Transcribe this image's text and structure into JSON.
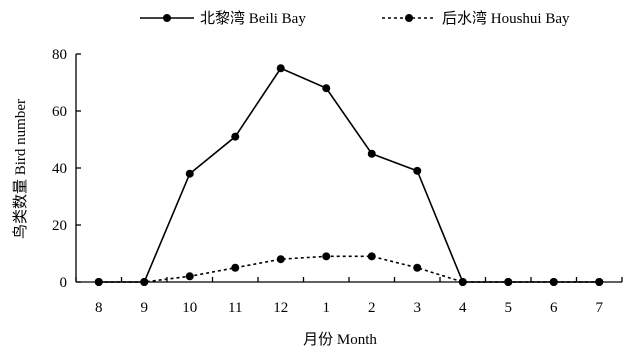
{
  "chart_data": {
    "type": "line",
    "xlabel": "月份 Month",
    "ylabel": "鸟类数量 Bird number",
    "categories": [
      "8",
      "9",
      "10",
      "11",
      "12",
      "1",
      "2",
      "3",
      "4",
      "5",
      "6",
      "7"
    ],
    "ylim": [
      0,
      80
    ],
    "yticks": [
      0,
      20,
      40,
      60,
      80
    ],
    "grid": false,
    "legend_position": "top",
    "series": [
      {
        "name": "北黎湾 Beili Bay",
        "line_style": "solid",
        "marker": "circle",
        "color": "#000000",
        "values": [
          0,
          0,
          38,
          51,
          75,
          68,
          45,
          39,
          0,
          0,
          0,
          0
        ]
      },
      {
        "name": "后水湾 Houshui Bay",
        "line_style": "dashed",
        "marker": "circle",
        "color": "#000000",
        "values": [
          0,
          0,
          2,
          5,
          8,
          9,
          9,
          5,
          0,
          0,
          0,
          0
        ]
      }
    ]
  }
}
